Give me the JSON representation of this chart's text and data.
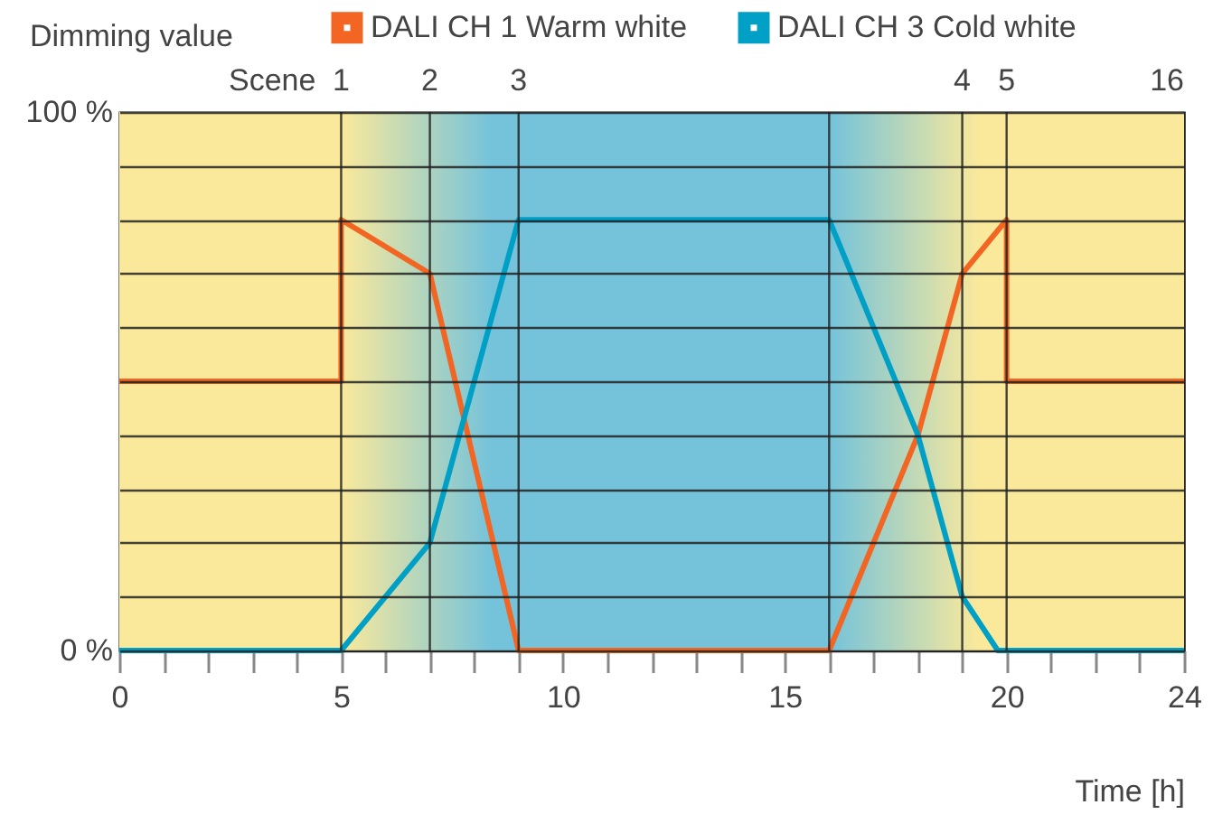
{
  "chart_data": {
    "type": "line",
    "ylabel": "Dimming value",
    "xlabel": "Time [h]",
    "annotations": [
      "Scene",
      {
        "text": "1",
        "x": 5,
        "y": 100
      },
      {
        "text": "2",
        "x": 7,
        "y": 100
      },
      {
        "text": "3",
        "x": 9,
        "y": 100
      },
      {
        "text": "4",
        "x": 19,
        "y": 100
      },
      {
        "text": "5",
        "x": 20,
        "y": 100
      },
      {
        "text": "16",
        "x": 24,
        "y": 100
      }
    ],
    "legend": "top right",
    "grid": "y",
    "line_style": "solid",
    "xlim": [
      0,
      24
    ],
    "xticks": [
      0,
      {
        "value": 1,
        "label": null
      },
      {
        "value": 2,
        "label": null
      },
      {
        "value": 3,
        "label": null
      },
      {
        "value": 4,
        "label": null
      },
      5,
      {
        "value": 6,
        "label": null
      },
      {
        "value": 7,
        "label": null
      },
      {
        "value": 8,
        "label": null
      },
      {
        "value": 9,
        "label": null
      },
      10,
      {
        "value": 11,
        "label": null
      },
      {
        "value": 12,
        "label": null
      },
      {
        "value": 13,
        "label": null
      },
      {
        "value": 14,
        "label": null
      },
      15,
      {
        "value": 16,
        "label": null
      },
      {
        "value": 17,
        "label": null
      },
      {
        "value": 18,
        "label": null
      },
      {
        "value": 19,
        "label": null
      },
      20,
      {
        "value": 21,
        "label": null
      },
      {
        "value": 22,
        "label": null
      },
      {
        "value": 23,
        "label": null
      },
      24
    ],
    "ref_lines": [
      {
        "axis": "x",
        "value": 5
      },
      {
        "axis": "x",
        "value": 7
      },
      {
        "axis": "x",
        "value": 9
      },
      {
        "axis": "x",
        "value": 16
      },
      {
        "axis": "x",
        "value": 19
      },
      {
        "axis": "x",
        "value": 20
      }
    ],
    "ylim": [
      0,
      100
    ],
    "yticks": [
      {
        "value": 0,
        "label": "0 %"
      },
      {
        "value": 10,
        "label": null
      },
      {
        "value": 20,
        "label": null
      },
      {
        "value": 30,
        "label": null
      },
      {
        "value": 40,
        "label": null
      },
      {
        "value": 50,
        "label": null
      },
      {
        "value": 60,
        "label": null
      },
      {
        "value": 70,
        "label": null
      },
      {
        "value": 80,
        "label": null
      },
      {
        "value": 90,
        "label": null
      },
      {
        "value": 100,
        "label": "100 %"
      }
    ],
    "bands": [
      {
        "axis": "x",
        "from": 0,
        "to": 5,
        "color": "#fbe99b"
      },
      {
        "axis": "x",
        "from": 5,
        "to": 9
      },
      {
        "axis": "x",
        "from": 9,
        "to": 16,
        "color": "#74c3db"
      },
      {
        "axis": "x",
        "from": 16,
        "to": 20
      },
      {
        "axis": "x",
        "from": 20,
        "to": 24,
        "color": "#fbe99b"
      }
    ],
    "series": [
      {
        "name": "DALI CH 1 Warm white",
        "color": "#f26522",
        "x": [
          0,
          5,
          5,
          7,
          9,
          16,
          18,
          19,
          20,
          20,
          24
        ],
        "values": [
          50,
          50,
          80,
          70,
          0,
          0,
          40,
          70,
          80,
          50,
          50
        ]
      },
      {
        "name": "DALI CH 3 Cold white",
        "color": "#00a0c6",
        "x": [
          0,
          5,
          7,
          9,
          16,
          18,
          19,
          19.8,
          24
        ],
        "values": [
          0,
          0,
          20,
          80,
          80,
          40,
          10,
          0,
          0
        ]
      }
    ]
  }
}
